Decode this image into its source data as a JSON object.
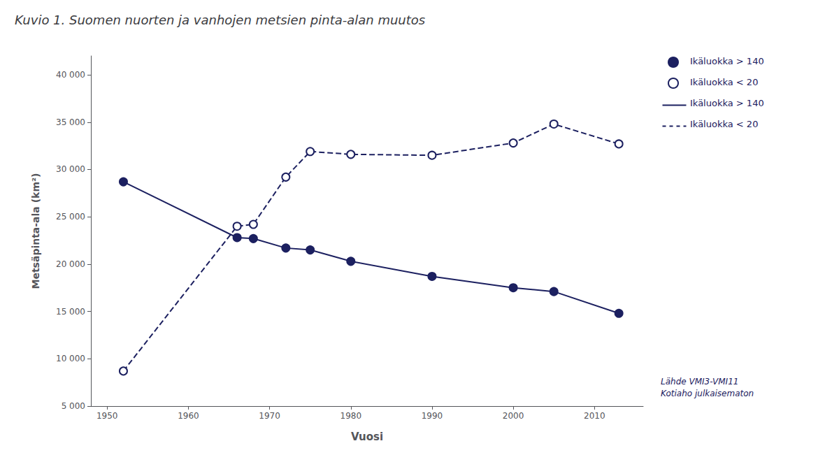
{
  "chart_data": {
    "type": "line",
    "title": "Kuvio 1. Suomen nuorten ja vanhojen metsien pinta-alan muutos",
    "xlabel": "Vuosi",
    "ylabel": "Metsäpinta-ala (km²)",
    "x": [
      1952,
      1966,
      1968,
      1972,
      1975,
      1980,
      1990,
      2000,
      2005,
      2013
    ],
    "series": [
      {
        "name": "Ikäluokka > 140",
        "color": "#1C2060",
        "marker": "filled_circle",
        "line_style": "solid",
        "values": [
          28700,
          22800,
          22700,
          21700,
          21500,
          20300,
          18700,
          17500,
          17100,
          14800
        ]
      },
      {
        "name": "Ikäluokka < 20",
        "color": "#1C2060",
        "marker": "open_circle",
        "line_style": "dashed",
        "values": [
          8700,
          24000,
          24200,
          29200,
          31900,
          31600,
          31500,
          32800,
          34800,
          32700
        ]
      }
    ],
    "xlim": [
      1948,
      2016
    ],
    "xticks": [
      1950,
      1960,
      1970,
      1980,
      1990,
      2000,
      2010
    ],
    "ylim": [
      5000,
      42000
    ],
    "yticks": [
      {
        "value": 5000,
        "label": "5 000"
      },
      {
        "value": 10000,
        "label": "10 000"
      },
      {
        "value": 15000,
        "label": "15 000"
      },
      {
        "value": 20000,
        "label": "20 000"
      },
      {
        "value": 25000,
        "label": "25 000"
      },
      {
        "value": 30000,
        "label": "30 000"
      },
      {
        "value": 35000,
        "label": "35 000"
      },
      {
        "value": 40000,
        "label": "40 000"
      }
    ],
    "grid": false,
    "legend": "right",
    "annotations": [
      {
        "text": "Lähde VMI3-VMI11\nKotiaho julkaisematon"
      }
    ]
  }
}
